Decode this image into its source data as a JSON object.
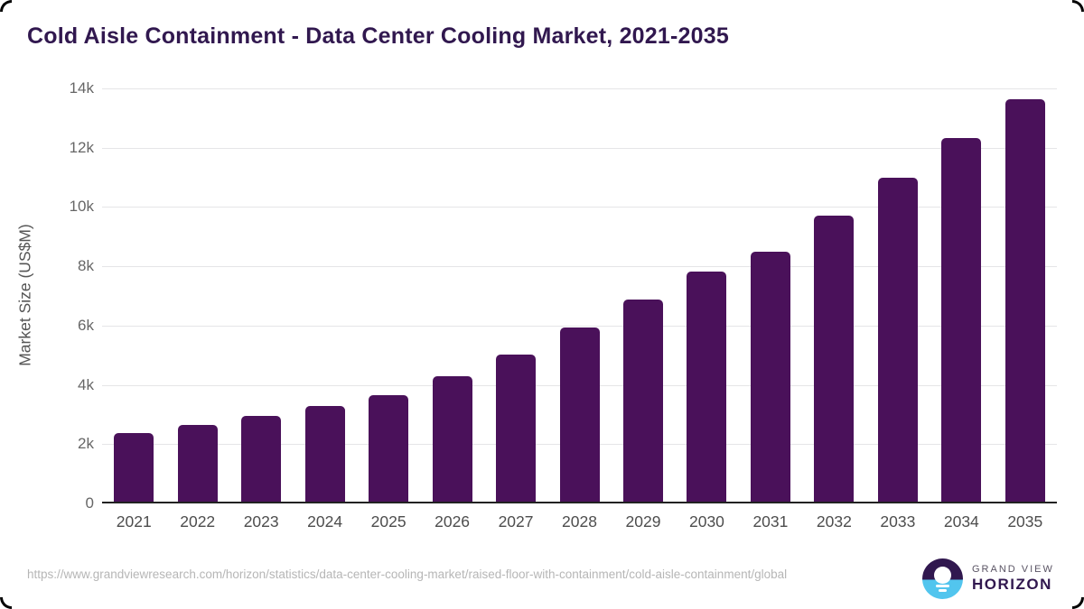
{
  "title": "Cold Aisle Containment - Data Center Cooling Market, 2021-2035",
  "chart_data": {
    "type": "bar",
    "title": "Cold Aisle Containment - Data Center Cooling Market, 2021-2035",
    "categories": [
      "2021",
      "2022",
      "2023",
      "2024",
      "2025",
      "2026",
      "2027",
      "2028",
      "2029",
      "2030",
      "2031",
      "2032",
      "2033",
      "2034",
      "2035"
    ],
    "values": [
      2310,
      2600,
      2890,
      3230,
      3590,
      4230,
      4950,
      5870,
      6820,
      7770,
      8430,
      9660,
      10920,
      12270,
      13580
    ],
    "xlabel": "",
    "ylabel": "Market Size (US$M)",
    "ylim": [
      0,
      14000
    ],
    "yticks": [
      {
        "value": 0,
        "label": "0"
      },
      {
        "value": 2000,
        "label": "2k"
      },
      {
        "value": 4000,
        "label": "4k"
      },
      {
        "value": 6000,
        "label": "6k"
      },
      {
        "value": 8000,
        "label": "8k"
      },
      {
        "value": 10000,
        "label": "10k"
      },
      {
        "value": 12000,
        "label": "12k"
      },
      {
        "value": 14000,
        "label": "14k"
      }
    ],
    "grid": "horizontal",
    "legend": "none",
    "bar_color": "#4a115a"
  },
  "colors": {
    "bar": "#4a115a",
    "title": "#31184f",
    "axis_line": "#222222",
    "gridline": "#e5e5e7",
    "tick_label": "#666666",
    "url_text": "#b6b6b6",
    "logo_blue": "#52c5ee"
  },
  "footer": {
    "source_url": "https://www.grandviewresearch.com/horizon/statistics/data-center-cooling-market/raised-floor-with-containment/cold-aisle-containment/global",
    "logo": {
      "icon": "horizon-sunset-icon",
      "brand_top": "GRAND VIEW",
      "brand_bottom": "HORIZON"
    }
  }
}
